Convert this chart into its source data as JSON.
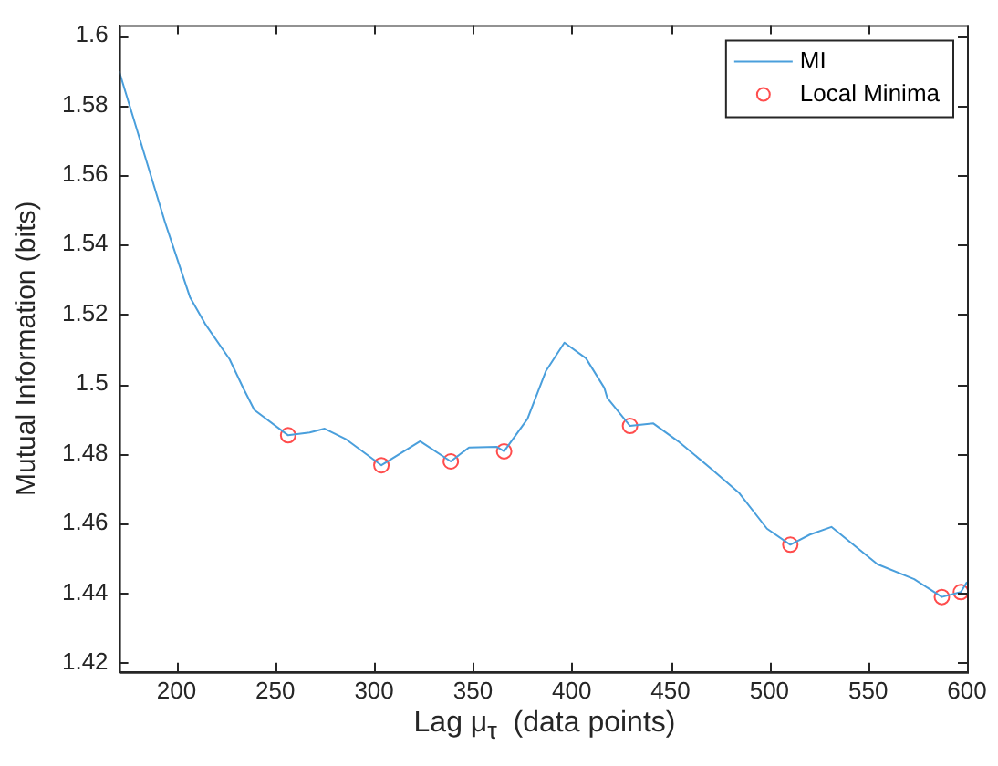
{
  "chart_data": {
    "type": "line",
    "xlabel": "Lag μ$_{τ}$  (data points)",
    "ylabel": "Mutual Information (bits)",
    "xlim": [
      171,
      600
    ],
    "ylim": [
      1.4174,
      1.603
    ],
    "xticks": [
      200,
      250,
      300,
      350,
      400,
      450,
      500,
      550,
      600
    ],
    "yticks": [
      1.42,
      1.44,
      1.46,
      1.48,
      1.5,
      1.52,
      1.54,
      1.56,
      1.58,
      1.6
    ],
    "grid": false,
    "legend": "top right",
    "series": [
      {
        "name": "MI",
        "color": "#4a9fdc",
        "line_style": "solid",
        "x": [
          171,
          194.3,
          206.8,
          214.5,
          226.9,
          234,
          239.4,
          256.5,
          267.4,
          275,
          286,
          303.7,
          323.3,
          338.8,
          348,
          362,
          365.8,
          377.6,
          386.9,
          396.3,
          407.2,
          416.5,
          418,
          429.5,
          441.3,
          453.8,
          470.8,
          484.8,
          498.8,
          510.6,
          520.5,
          531.4,
          554.7,
          573.3,
          587.3,
          596.9,
          600
        ],
        "values": [
          1.5898,
          1.5463,
          1.525,
          1.5173,
          1.5071,
          1.4986,
          1.4926,
          1.4853,
          1.4861,
          1.4872,
          1.4841,
          1.4767,
          1.4836,
          1.4778,
          1.4818,
          1.482,
          1.4807,
          1.49,
          1.5037,
          1.5119,
          1.5074,
          1.4989,
          1.496,
          1.488,
          1.4887,
          1.4836,
          1.4756,
          1.4687,
          1.4585,
          1.4539,
          1.4568,
          1.459,
          1.4483,
          1.444,
          1.4389,
          1.4403,
          1.4432
        ]
      },
      {
        "name": "Local Minima",
        "type": "scatter",
        "marker": "circle",
        "color": "#ff4d4d",
        "x": [
          256.5,
          303.7,
          338.8,
          365.8,
          429.5,
          510.6,
          587.3,
          596.9
        ],
        "values": [
          1.4853,
          1.4767,
          1.4778,
          1.4807,
          1.488,
          1.4539,
          1.4389,
          1.4403
        ]
      }
    ]
  }
}
